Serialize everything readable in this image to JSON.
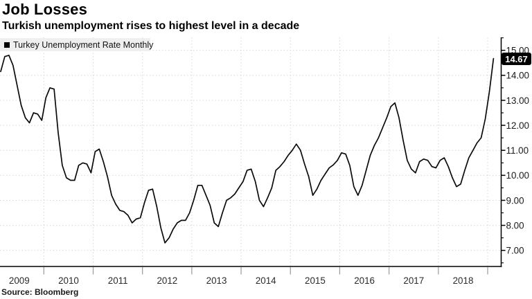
{
  "header": {
    "title": "Job Losses",
    "subtitle": "Turkish unemployment rises to highest level in a decade"
  },
  "legend": {
    "label": "Turkey Unemployment Rate Monthly",
    "marker_color": "#000000"
  },
  "badge": {
    "value": "14.67",
    "bg": "#000000",
    "fg": "#ffffff"
  },
  "source": {
    "text": "Source: Bloomberg"
  },
  "colors": {
    "line": "#0a0a0a",
    "grid": "#d6d6d6",
    "axis": "#000000",
    "x_tick": "#999999",
    "legend_bg": "#efefef"
  },
  "chart_data": {
    "type": "line",
    "title": "Turkey Unemployment Rate Monthly",
    "unit": "percent",
    "x_start": "2009-02",
    "x_freq": "monthly",
    "grid": true,
    "legend_position": "top-left",
    "y_axis_side": "right",
    "ylim": [
      7,
      15
    ],
    "y_tick_step": 1.0,
    "y_minor_tick_step": 0.5,
    "x_tick_labels": [
      "2009",
      "2010",
      "2011",
      "2012",
      "2013",
      "2014",
      "2015",
      "2016",
      "2017",
      "2018"
    ],
    "y_tick_labels": [
      "15.00",
      "14.00",
      "13.00",
      "12.00",
      "11.00",
      "10.00",
      "9.00",
      "8.00",
      "7.00"
    ],
    "last_value": 14.67,
    "values": [
      14.15,
      14.75,
      14.8,
      14.4,
      13.6,
      12.8,
      12.3,
      12.1,
      12.5,
      12.45,
      12.2,
      13.1,
      13.5,
      13.45,
      11.7,
      10.4,
      9.9,
      9.8,
      9.8,
      10.4,
      10.5,
      10.45,
      10.1,
      10.95,
      11.05,
      10.55,
      9.95,
      9.2,
      8.85,
      8.6,
      8.55,
      8.4,
      8.1,
      8.25,
      8.3,
      8.9,
      9.4,
      9.45,
      8.75,
      7.9,
      7.3,
      7.5,
      7.85,
      8.1,
      8.2,
      8.2,
      8.5,
      9.0,
      9.6,
      9.6,
      9.2,
      8.8,
      8.1,
      7.95,
      8.5,
      9.0,
      9.1,
      9.25,
      9.5,
      9.75,
      10.2,
      10.25,
      9.75,
      9.0,
      8.75,
      9.1,
      9.5,
      10.2,
      10.35,
      10.55,
      10.8,
      11.0,
      11.25,
      11.0,
      10.45,
      9.95,
      9.2,
      9.45,
      9.8,
      10.05,
      10.3,
      10.42,
      10.6,
      10.9,
      10.85,
      10.4,
      9.55,
      9.2,
      9.6,
      10.2,
      10.8,
      11.2,
      11.5,
      11.9,
      12.3,
      12.75,
      12.9,
      12.3,
      11.4,
      10.6,
      10.25,
      10.1,
      10.55,
      10.65,
      10.6,
      10.35,
      10.3,
      10.6,
      10.7,
      10.35,
      9.9,
      9.55,
      9.65,
      10.2,
      10.7,
      11.0,
      11.3,
      11.5,
      12.25,
      13.35,
      14.67
    ]
  }
}
